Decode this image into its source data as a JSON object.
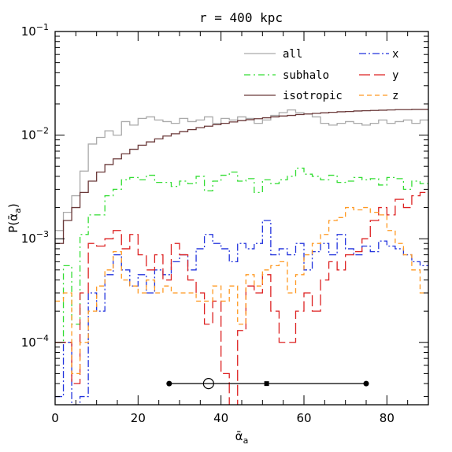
{
  "chart_data": {
    "type": "line",
    "title": "r = 400 kpc",
    "xlabel": "ᾱ",
    "xlabel_sub": "a",
    "ylabel": "P(ᾱ",
    "ylabel_sub": "a",
    "ylabel_close": ")",
    "xlim": [
      0,
      90
    ],
    "ylim": [
      2.5e-05,
      0.1
    ],
    "yscale": "log",
    "x_ticks": [
      0,
      20,
      40,
      60,
      80
    ],
    "x_tick_labels": [
      "0",
      "20",
      "40",
      "60",
      "80"
    ],
    "y_ticks": [
      0.0001,
      0.001,
      0.01,
      0.1
    ],
    "y_tick_labels": [
      {
        "base": "10",
        "exp": "−4"
      },
      {
        "base": "10",
        "exp": "−3"
      },
      {
        "base": "10",
        "exp": "−2"
      },
      {
        "base": "10",
        "exp": "−1"
      }
    ],
    "bin_edges": [
      0,
      2,
      4,
      6,
      8,
      10,
      12,
      14,
      16,
      18,
      20,
      22,
      24,
      26,
      28,
      30,
      32,
      34,
      36,
      38,
      40,
      42,
      44,
      46,
      48,
      50,
      52,
      54,
      56,
      58,
      60,
      62,
      64,
      66,
      68,
      70,
      72,
      74,
      76,
      78,
      80,
      82,
      84,
      86,
      88,
      90
    ],
    "series": [
      {
        "name": "all",
        "color": "#aaaaaa",
        "dash": "",
        "values": [
          0.0012,
          0.0018,
          0.0026,
          0.0045,
          0.0082,
          0.0095,
          0.011,
          0.01,
          0.0135,
          0.0125,
          0.0145,
          0.015,
          0.014,
          0.0135,
          0.013,
          0.0145,
          0.0135,
          0.014,
          0.015,
          0.013,
          0.0145,
          0.014,
          0.015,
          0.0145,
          0.013,
          0.014,
          0.0155,
          0.0165,
          0.0175,
          0.0165,
          0.016,
          0.015,
          0.013,
          0.0125,
          0.013,
          0.0135,
          0.013,
          0.0125,
          0.013,
          0.014,
          0.013,
          0.0135,
          0.014,
          0.013,
          0.014
        ]
      },
      {
        "name": "isotropic",
        "color": "#6b3a3a",
        "dash": "",
        "values": [
          0.0009,
          0.0015,
          0.002,
          0.0028,
          0.0036,
          0.0044,
          0.0052,
          0.0059,
          0.0066,
          0.0073,
          0.008,
          0.0086,
          0.0092,
          0.0098,
          0.0103,
          0.0108,
          0.0113,
          0.0118,
          0.0122,
          0.0126,
          0.013,
          0.0134,
          0.0138,
          0.0141,
          0.0144,
          0.0147,
          0.015,
          0.0153,
          0.0155,
          0.0158,
          0.016,
          0.0162,
          0.0164,
          0.0166,
          0.0168,
          0.0169,
          0.0171,
          0.0172,
          0.0173,
          0.0174,
          0.0175,
          0.0176,
          0.0176,
          0.0177,
          0.0177
        ]
      },
      {
        "name": "subhalo",
        "color": "#33dd33",
        "dash": "8,4,2,4",
        "values": [
          0.0001,
          0.00055,
          0.00015,
          0.0011,
          0.0017,
          0.0017,
          0.0026,
          0.003,
          0.0037,
          0.0039,
          0.0037,
          0.0041,
          0.0035,
          0.0035,
          0.0032,
          0.0036,
          0.0034,
          0.004,
          0.0029,
          0.0036,
          0.0041,
          0.0044,
          0.0036,
          0.0038,
          0.0028,
          0.0037,
          0.0034,
          0.0037,
          0.004,
          0.0048,
          0.0042,
          0.004,
          0.0037,
          0.0041,
          0.0035,
          0.0036,
          0.0039,
          0.0037,
          0.0038,
          0.0033,
          0.0039,
          0.0038,
          0.003,
          0.0036,
          0.0034
        ]
      },
      {
        "name": "x",
        "color": "#2233dd",
        "dash": "9,3,2,3",
        "values": [
          3e-05,
          0.0001,
          2.5e-05,
          3e-05,
          0.0003,
          0.0002,
          0.00045,
          0.0007,
          0.0005,
          0.00035,
          0.00045,
          0.0003,
          0.0005,
          0.00045,
          0.0006,
          0.0007,
          0.0005,
          0.0008,
          0.0011,
          0.0009,
          0.0008,
          0.0006,
          0.0009,
          0.0008,
          0.0009,
          0.0015,
          0.0007,
          0.0008,
          0.0007,
          0.0009,
          0.0005,
          0.00075,
          0.0009,
          0.0007,
          0.0011,
          0.0008,
          0.0007,
          0.00085,
          0.00075,
          0.00095,
          0.00085,
          0.0008,
          0.0007,
          0.0006,
          0.00055
        ]
      },
      {
        "name": "y",
        "color": "#dd2222",
        "dash": "14,5",
        "values": [
          0.0001,
          0.0001,
          4e-05,
          0.0003,
          0.0009,
          0.00085,
          0.001,
          0.0012,
          0.0008,
          0.0011,
          0.0007,
          0.0005,
          0.0007,
          0.0004,
          0.0009,
          0.0007,
          0.0004,
          0.0003,
          0.00015,
          0.00025,
          5e-05,
          2e-05,
          0.00013,
          0.00035,
          0.0003,
          0.00045,
          0.0002,
          0.0001,
          0.0001,
          0.0002,
          0.0003,
          0.0002,
          0.0004,
          0.0006,
          0.0005,
          0.0007,
          0.00075,
          0.001,
          0.0015,
          0.002,
          0.0017,
          0.0024,
          0.002,
          0.0026,
          0.0028
        ]
      },
      {
        "name": "z",
        "color": "#ff9922",
        "dash": "6,4",
        "values": [
          0.00025,
          0.0003,
          5e-05,
          0.0001,
          0.0002,
          0.00035,
          0.0005,
          0.00075,
          0.0004,
          0.00035,
          0.0003,
          0.0004,
          0.0003,
          0.00035,
          0.0003,
          0.0003,
          0.0003,
          0.00025,
          0.00025,
          0.00035,
          0.00025,
          0.00035,
          0.00015,
          0.00045,
          0.00035,
          0.0005,
          0.00055,
          0.0006,
          0.0003,
          0.00045,
          0.0007,
          0.0009,
          0.0011,
          0.0015,
          0.0016,
          0.002,
          0.0019,
          0.002,
          0.0018,
          0.0017,
          0.0012,
          0.0009,
          0.0007,
          0.0005,
          0.0003
        ]
      }
    ],
    "legend": {
      "left": [
        "all",
        "subhalo",
        "isotropic"
      ],
      "right": [
        "x",
        "y",
        "z"
      ]
    },
    "interval": {
      "y": 4e-05,
      "low": 27.5,
      "high": 75,
      "median": 51,
      "open_circle": 37
    }
  }
}
